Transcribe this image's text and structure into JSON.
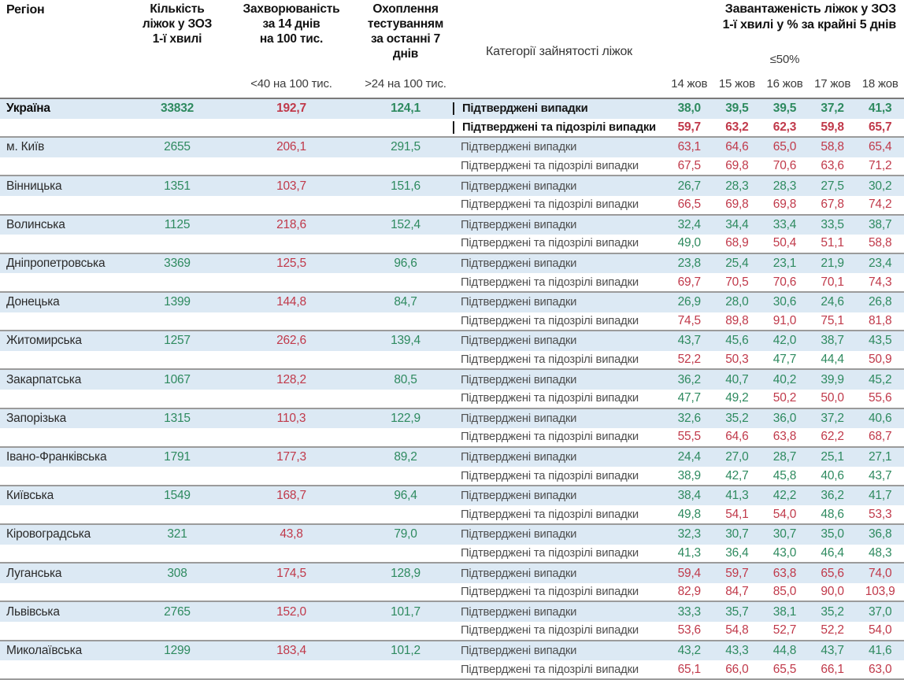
{
  "colors": {
    "green": "#2e8a5f",
    "red": "#c0394a",
    "stripe_blue": "#dce9f4",
    "separator_gray": "#9b9b9b"
  },
  "chart_data": {
    "type": "table",
    "columns": {
      "region": "Регіон",
      "beds": "Кількість\nліжок у ЗОЗ\n1-ї хвилі",
      "incidence": "Захворюваність\nза 14 днів\nна 100 тис.",
      "testing": "Охоплення\nтестуванням\nза останні 7 днів",
      "category": "Категорії зайнятості ліжок",
      "occupancy": "Завантаженість ліжок у ЗОЗ\n1-ї хвилі у % за крайні 5 днів",
      "incidence_threshold": "<40 на 100 тис.",
      "testing_threshold": ">24 на 100 тис.",
      "occupancy_threshold": "≤50%"
    },
    "dates": [
      "14 жов",
      "15 жов",
      "16 жов",
      "17 жов",
      "18 жов"
    ],
    "category_labels": [
      "Підтверджені випадки",
      "Підтверджені та підозрілі випадки"
    ],
    "regions": [
      {
        "name": "Україна",
        "bold": true,
        "beds": "33832",
        "incidence": "192,7",
        "testing": "124,1",
        "confirmed": [
          "38,0",
          "39,5",
          "39,5",
          "37,2",
          "41,3"
        ],
        "confirmed_c": [
          "g",
          "g",
          "g",
          "g",
          "g"
        ],
        "suspected": [
          "59,7",
          "63,2",
          "62,3",
          "59,8",
          "65,7"
        ],
        "suspected_c": [
          "r",
          "r",
          "r",
          "r",
          "r"
        ]
      },
      {
        "name": "м. Київ",
        "bold": false,
        "beds": "2655",
        "incidence": "206,1",
        "testing": "291,5",
        "confirmed": [
          "63,1",
          "64,6",
          "65,0",
          "58,8",
          "65,4"
        ],
        "confirmed_c": [
          "r",
          "r",
          "r",
          "r",
          "r"
        ],
        "suspected": [
          "67,5",
          "69,8",
          "70,6",
          "63,6",
          "71,2"
        ],
        "suspected_c": [
          "r",
          "r",
          "r",
          "r",
          "r"
        ]
      },
      {
        "name": "Вінницька",
        "bold": false,
        "beds": "1351",
        "incidence": "103,7",
        "testing": "151,6",
        "confirmed": [
          "26,7",
          "28,3",
          "28,3",
          "27,5",
          "30,2"
        ],
        "confirmed_c": [
          "g",
          "g",
          "g",
          "g",
          "g"
        ],
        "suspected": [
          "66,5",
          "69,8",
          "69,8",
          "67,8",
          "74,2"
        ],
        "suspected_c": [
          "r",
          "r",
          "r",
          "r",
          "r"
        ]
      },
      {
        "name": "Волинська",
        "bold": false,
        "beds": "1125",
        "incidence": "218,6",
        "testing": "152,4",
        "confirmed": [
          "32,4",
          "34,4",
          "33,4",
          "33,5",
          "38,7"
        ],
        "confirmed_c": [
          "g",
          "g",
          "g",
          "g",
          "g"
        ],
        "suspected": [
          "49,0",
          "68,9",
          "50,4",
          "51,1",
          "58,8"
        ],
        "suspected_c": [
          "g",
          "r",
          "r",
          "r",
          "r"
        ]
      },
      {
        "name": "Дніпропетровська",
        "bold": false,
        "beds": "3369",
        "incidence": "125,5",
        "testing": "96,6",
        "confirmed": [
          "23,8",
          "25,4",
          "23,1",
          "21,9",
          "23,4"
        ],
        "confirmed_c": [
          "g",
          "g",
          "g",
          "g",
          "g"
        ],
        "suspected": [
          "69,7",
          "70,5",
          "70,6",
          "70,1",
          "74,3"
        ],
        "suspected_c": [
          "r",
          "r",
          "r",
          "r",
          "r"
        ]
      },
      {
        "name": "Донецька",
        "bold": false,
        "beds": "1399",
        "incidence": "144,8",
        "testing": "84,7",
        "confirmed": [
          "26,9",
          "28,0",
          "30,6",
          "24,6",
          "26,8"
        ],
        "confirmed_c": [
          "g",
          "g",
          "g",
          "g",
          "g"
        ],
        "suspected": [
          "74,5",
          "89,8",
          "91,0",
          "75,1",
          "81,8"
        ],
        "suspected_c": [
          "r",
          "r",
          "r",
          "r",
          "r"
        ]
      },
      {
        "name": "Житомирська",
        "bold": false,
        "beds": "1257",
        "incidence": "262,6",
        "testing": "139,4",
        "confirmed": [
          "43,7",
          "45,6",
          "42,0",
          "38,7",
          "43,5"
        ],
        "confirmed_c": [
          "g",
          "g",
          "g",
          "g",
          "g"
        ],
        "suspected": [
          "52,2",
          "50,3",
          "47,7",
          "44,4",
          "50,9"
        ],
        "suspected_c": [
          "r",
          "r",
          "g",
          "g",
          "r"
        ]
      },
      {
        "name": "Закарпатська",
        "bold": false,
        "beds": "1067",
        "incidence": "128,2",
        "testing": "80,5",
        "confirmed": [
          "36,2",
          "40,7",
          "40,2",
          "39,9",
          "45,2"
        ],
        "confirmed_c": [
          "g",
          "g",
          "g",
          "g",
          "g"
        ],
        "suspected": [
          "47,7",
          "49,2",
          "50,2",
          "50,0",
          "55,6"
        ],
        "suspected_c": [
          "g",
          "g",
          "r",
          "r",
          "r"
        ]
      },
      {
        "name": "Запорізька",
        "bold": false,
        "beds": "1315",
        "incidence": "110,3",
        "testing": "122,9",
        "confirmed": [
          "32,6",
          "35,2",
          "36,0",
          "37,2",
          "40,6"
        ],
        "confirmed_c": [
          "g",
          "g",
          "g",
          "g",
          "g"
        ],
        "suspected": [
          "55,5",
          "64,6",
          "63,8",
          "62,2",
          "68,7"
        ],
        "suspected_c": [
          "r",
          "r",
          "r",
          "r",
          "r"
        ]
      },
      {
        "name": "Івано-Франківська",
        "bold": false,
        "beds": "1791",
        "incidence": "177,3",
        "testing": "89,2",
        "confirmed": [
          "24,4",
          "27,0",
          "28,7",
          "25,1",
          "27,1"
        ],
        "confirmed_c": [
          "g",
          "g",
          "g",
          "g",
          "g"
        ],
        "suspected": [
          "38,9",
          "42,7",
          "45,8",
          "40,6",
          "43,7"
        ],
        "suspected_c": [
          "g",
          "g",
          "g",
          "g",
          "g"
        ]
      },
      {
        "name": "Київська",
        "bold": false,
        "beds": "1549",
        "incidence": "168,7",
        "testing": "96,4",
        "confirmed": [
          "38,4",
          "41,3",
          "42,2",
          "36,2",
          "41,7"
        ],
        "confirmed_c": [
          "g",
          "g",
          "g",
          "g",
          "g"
        ],
        "suspected": [
          "49,8",
          "54,1",
          "54,0",
          "48,6",
          "53,3"
        ],
        "suspected_c": [
          "g",
          "r",
          "r",
          "g",
          "r"
        ]
      },
      {
        "name": "Кіровоградська",
        "bold": false,
        "beds": "321",
        "incidence": "43,8",
        "testing": "79,0",
        "confirmed": [
          "32,3",
          "30,7",
          "30,7",
          "35,0",
          "36,8"
        ],
        "confirmed_c": [
          "g",
          "g",
          "g",
          "g",
          "g"
        ],
        "suspected": [
          "41,3",
          "36,4",
          "43,0",
          "46,4",
          "48,3"
        ],
        "suspected_c": [
          "g",
          "g",
          "g",
          "g",
          "g"
        ]
      },
      {
        "name": "Луганська",
        "bold": false,
        "beds": "308",
        "incidence": "174,5",
        "testing": "128,9",
        "confirmed": [
          "59,4",
          "59,7",
          "63,8",
          "65,6",
          "74,0"
        ],
        "confirmed_c": [
          "r",
          "r",
          "r",
          "r",
          "r"
        ],
        "suspected": [
          "82,9",
          "84,7",
          "85,0",
          "90,0",
          "103,9"
        ],
        "suspected_c": [
          "r",
          "r",
          "r",
          "r",
          "r"
        ]
      },
      {
        "name": "Львівська",
        "bold": false,
        "beds": "2765",
        "incidence": "152,0",
        "testing": "101,7",
        "confirmed": [
          "33,3",
          "35,7",
          "38,1",
          "35,2",
          "37,0"
        ],
        "confirmed_c": [
          "g",
          "g",
          "g",
          "g",
          "g"
        ],
        "suspected": [
          "53,6",
          "54,8",
          "52,7",
          "52,2",
          "54,0"
        ],
        "suspected_c": [
          "r",
          "r",
          "r",
          "r",
          "r"
        ]
      },
      {
        "name": "Миколаївська",
        "bold": false,
        "beds": "1299",
        "incidence": "183,4",
        "testing": "101,2",
        "confirmed": [
          "43,2",
          "43,3",
          "44,8",
          "43,7",
          "41,6"
        ],
        "confirmed_c": [
          "g",
          "g",
          "g",
          "g",
          "g"
        ],
        "suspected": [
          "65,1",
          "66,0",
          "65,5",
          "66,1",
          "63,0"
        ],
        "suspected_c": [
          "r",
          "r",
          "r",
          "r",
          "r"
        ]
      }
    ]
  }
}
